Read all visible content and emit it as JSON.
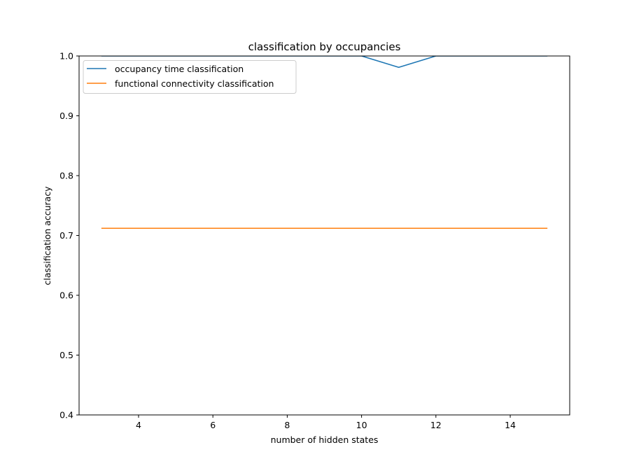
{
  "chart_data": {
    "type": "line",
    "title": "classification by occupancies",
    "xlabel": "number of hidden states",
    "ylabel": "classification accuracy",
    "xlim": [
      2.4,
      15.6
    ],
    "ylim": [
      0.4,
      1.0
    ],
    "xticks": [
      4,
      6,
      8,
      10,
      12,
      14
    ],
    "yticks": [
      0.4,
      0.5,
      0.6,
      0.7,
      0.8,
      0.9,
      1.0
    ],
    "grid": false,
    "legend_position": "upper-left",
    "series": [
      {
        "name": "occupancy time classification",
        "color": "#1f77b4",
        "x": [
          3,
          4,
          5,
          6,
          7,
          8,
          9,
          10,
          11,
          12,
          13,
          14,
          15
        ],
        "y": [
          1.0,
          1.0,
          1.0,
          1.0,
          1.0,
          1.0,
          1.0,
          1.0,
          0.981,
          1.0,
          1.0,
          1.0,
          1.0
        ]
      },
      {
        "name": "functional connectivity classification",
        "color": "#ff7f0e",
        "x": [
          3,
          4,
          5,
          6,
          7,
          8,
          9,
          10,
          11,
          12,
          13,
          14,
          15
        ],
        "y": [
          0.712,
          0.712,
          0.712,
          0.712,
          0.712,
          0.712,
          0.712,
          0.712,
          0.712,
          0.712,
          0.712,
          0.712,
          0.712
        ]
      }
    ]
  }
}
